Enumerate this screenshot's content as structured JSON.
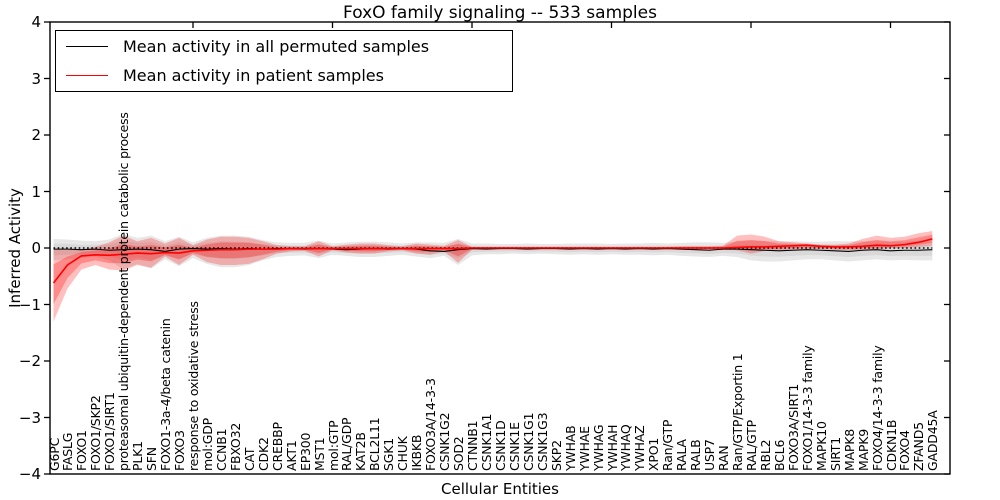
{
  "figure": {
    "title": "FoxO family signaling -- 533 samples",
    "xlabel": "Cellular Entities",
    "ylabel": "Inferred Activity"
  },
  "legend": {
    "position": "upper left",
    "entries": [
      {
        "label": "Mean activity in all permuted samples",
        "color": "#000000"
      },
      {
        "label": "Mean activity in patient samples",
        "color": "#ff0000"
      }
    ]
  },
  "axes": {
    "ylim": [
      -4,
      4
    ],
    "y_ticks": [
      {
        "label": "4",
        "value": 4
      },
      {
        "label": "3",
        "value": 3
      },
      {
        "label": "2",
        "value": 2
      },
      {
        "label": "1",
        "value": 1
      },
      {
        "label": "0",
        "value": 0
      },
      {
        "label": "−1",
        "value": -1
      },
      {
        "label": "−2",
        "value": -2
      },
      {
        "label": "−3",
        "value": -3
      },
      {
        "label": "−4",
        "value": -4
      }
    ],
    "grid": false
  },
  "chart_data": {
    "type": "line",
    "title": "FoxO family signaling -- 533 samples",
    "xlabel": "Cellular Entities",
    "ylabel": "Inferred Activity",
    "ylim": [
      -4,
      4
    ],
    "legend_position": "upper left",
    "categories": [
      "G6PC",
      "FASLG",
      "FOXO1",
      "FOXO1/SKP2",
      "FOXO1/SIRT1",
      "proteasomal ubiquitin-dependent protein catabolic process",
      "PLK1",
      "SFN",
      "FOXO1-3a-4/beta catenin",
      "FOXO3",
      "response to oxidative stress",
      "mol:GDP",
      "CCNB1",
      "FBXO32",
      "CAT",
      "CDK2",
      "CREBBP",
      "AKT1",
      "EP300",
      "MST1",
      "mol:GTP",
      "RAL/GDP",
      "KAT2B",
      "BCL2L11",
      "SGK1",
      "CHUK",
      "IKBKB",
      "FOXO3A/14-3-3",
      "CSNK1G2",
      "SOD2",
      "CTNNB1",
      "CSNK1A1",
      "CSNK1D",
      "CSNK1E",
      "CSNK1G1",
      "CSNK1G3",
      "SKP2",
      "YWHAB",
      "YWHAE",
      "YWHAG",
      "YWHAH",
      "YWHAQ",
      "YWHAZ",
      "XPO1",
      "Ran/GTP",
      "RALA",
      "RALB",
      "USP7",
      "RAN",
      "Ran/GTP/Exportin 1",
      "RAL/GTP",
      "RBL2",
      "BCL6",
      "FOXO3A/SIRT1",
      "FOXO1/14-3-3 family",
      "MAPK10",
      "SIRT1",
      "MAPK8",
      "MAPK9",
      "FOXO4/14-3-3 family",
      "CDKN1B",
      "FOXO4",
      "ZFAND5",
      "GADD45A"
    ],
    "series": [
      {
        "name": "Mean activity in all permuted samples",
        "color": "#000000",
        "band_color": "#aaaaaa",
        "mean": [
          -0.02,
          -0.02,
          -0.03,
          -0.02,
          -0.04,
          -0.03,
          -0.02,
          -0.03,
          -0.06,
          -0.02,
          -0.01,
          -0.02,
          -0.01,
          -0.02,
          -0.01,
          -0.02,
          -0.01,
          -0.01,
          -0.02,
          -0.01,
          -0.02,
          -0.03,
          -0.02,
          -0.01,
          -0.02,
          -0.01,
          -0.02,
          -0.05,
          -0.06,
          -0.03,
          -0.01,
          -0.02,
          -0.01,
          -0.01,
          -0.02,
          -0.01,
          -0.01,
          -0.02,
          -0.01,
          -0.02,
          -0.01,
          -0.02,
          -0.01,
          -0.02,
          -0.01,
          -0.02,
          -0.03,
          -0.04,
          -0.02,
          -0.02,
          -0.03,
          -0.04,
          -0.05,
          -0.04,
          -0.03,
          -0.04,
          -0.05,
          -0.06,
          -0.04,
          -0.03,
          -0.05,
          -0.04,
          -0.04,
          -0.03
        ],
        "band_low": [
          -0.22,
          -0.2,
          -0.17,
          -0.15,
          -0.22,
          -0.38,
          -0.28,
          -0.36,
          -0.2,
          -0.32,
          -0.18,
          -0.28,
          -0.34,
          -0.34,
          -0.3,
          -0.22,
          -0.16,
          -0.14,
          -0.13,
          -0.18,
          -0.12,
          -0.14,
          -0.16,
          -0.16,
          -0.14,
          -0.12,
          -0.15,
          -0.18,
          -0.14,
          -0.3,
          -0.13,
          -0.11,
          -0.11,
          -0.1,
          -0.11,
          -0.1,
          -0.11,
          -0.12,
          -0.11,
          -0.12,
          -0.11,
          -0.12,
          -0.12,
          -0.13,
          -0.12,
          -0.14,
          -0.15,
          -0.16,
          -0.14,
          -0.16,
          -0.22,
          -0.24,
          -0.24,
          -0.22,
          -0.2,
          -0.2,
          -0.22,
          -0.24,
          -0.22,
          -0.2,
          -0.22,
          -0.21,
          -0.22,
          -0.22
        ],
        "band_high": [
          0.16,
          0.15,
          0.13,
          0.12,
          0.15,
          0.25,
          0.18,
          0.22,
          0.12,
          0.2,
          0.1,
          0.18,
          0.22,
          0.22,
          0.2,
          0.14,
          0.1,
          0.09,
          0.09,
          0.13,
          0.08,
          0.1,
          0.11,
          0.11,
          0.1,
          0.08,
          0.1,
          0.1,
          0.09,
          0.16,
          0.08,
          0.08,
          0.07,
          0.07,
          0.08,
          0.07,
          0.07,
          0.08,
          0.08,
          0.08,
          0.07,
          0.08,
          0.08,
          0.09,
          0.08,
          0.09,
          0.1,
          0.1,
          0.09,
          0.11,
          0.13,
          0.13,
          0.12,
          0.12,
          0.11,
          0.11,
          0.12,
          0.12,
          0.12,
          0.12,
          0.11,
          0.11,
          0.12,
          0.1
        ]
      },
      {
        "name": "Mean activity in patient samples",
        "color": "#ff0000",
        "band_color": "#ff0000",
        "mean": [
          -0.62,
          -0.3,
          -0.14,
          -0.12,
          -0.13,
          -0.11,
          -0.09,
          -0.1,
          -0.08,
          -0.09,
          -0.05,
          -0.04,
          -0.03,
          -0.03,
          -0.02,
          -0.02,
          -0.02,
          -0.01,
          -0.01,
          -0.01,
          -0.01,
          -0.01,
          -0.01,
          -0.01,
          -0.01,
          -0.01,
          -0.01,
          -0.01,
          -0.01,
          -0.01,
          0.0,
          0.0,
          0.0,
          0.0,
          0.0,
          0.0,
          0.0,
          0.0,
          0.0,
          0.0,
          0.0,
          0.0,
          0.0,
          0.0,
          0.0,
          0.0,
          0.0,
          0.0,
          0.0,
          0.01,
          0.02,
          0.02,
          0.03,
          0.04,
          0.05,
          0.03,
          0.02,
          0.02,
          0.03,
          0.05,
          0.04,
          0.06,
          0.1,
          0.16
        ],
        "band_low": [
          -1.3,
          -0.72,
          -0.38,
          -0.3,
          -0.38,
          -0.4,
          -0.3,
          -0.35,
          -0.15,
          -0.3,
          -0.12,
          -0.25,
          -0.3,
          -0.3,
          -0.28,
          -0.2,
          -0.1,
          -0.06,
          -0.05,
          -0.15,
          -0.04,
          -0.08,
          -0.1,
          -0.1,
          -0.06,
          -0.04,
          -0.1,
          -0.12,
          -0.06,
          -0.26,
          -0.03,
          -0.02,
          -0.02,
          -0.02,
          -0.02,
          -0.02,
          -0.02,
          -0.02,
          -0.02,
          -0.02,
          -0.02,
          -0.02,
          -0.02,
          -0.02,
          -0.02,
          -0.03,
          -0.03,
          -0.03,
          -0.03,
          -0.04,
          -0.1,
          -0.05,
          -0.04,
          -0.03,
          -0.02,
          -0.02,
          -0.03,
          -0.04,
          -0.03,
          -0.02,
          0.0,
          0.0,
          0.02,
          0.04
        ],
        "band_high": [
          -0.02,
          -0.03,
          -0.02,
          0.02,
          0.1,
          0.22,
          0.12,
          0.18,
          0.08,
          0.18,
          0.05,
          0.15,
          0.2,
          0.2,
          0.18,
          0.12,
          0.05,
          0.03,
          0.03,
          0.12,
          0.03,
          0.06,
          0.08,
          0.08,
          0.05,
          0.03,
          0.08,
          0.06,
          0.04,
          0.14,
          0.02,
          0.02,
          0.02,
          0.02,
          0.02,
          0.02,
          0.02,
          0.02,
          0.02,
          0.02,
          0.02,
          0.02,
          0.02,
          0.02,
          0.02,
          0.03,
          0.03,
          0.03,
          0.04,
          0.22,
          0.24,
          0.2,
          0.12,
          0.1,
          0.08,
          0.06,
          0.06,
          0.08,
          0.16,
          0.22,
          0.18,
          0.2,
          0.26,
          0.3
        ]
      }
    ],
    "baseline": {
      "value": 0,
      "style": "dotted",
      "color": "#000000"
    }
  }
}
